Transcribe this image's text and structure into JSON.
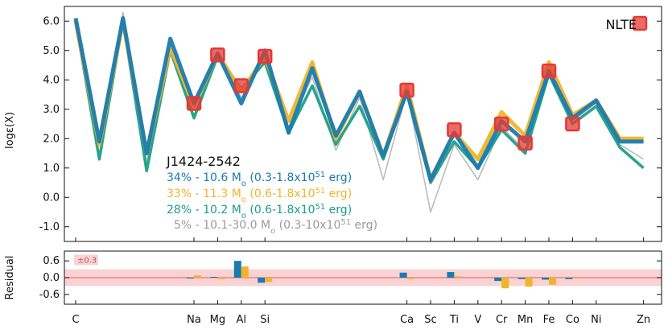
{
  "chart_data": [
    {
      "type": "line",
      "ylabel": "logε(X)",
      "ylim": [
        -1.5,
        6.5
      ],
      "yticks": [
        -1.0,
        0.0,
        1.0,
        2.0,
        3.0,
        4.0,
        5.0,
        6.0
      ],
      "grid": false,
      "x_slots": [
        "C",
        "N",
        "O",
        "F",
        "Ne",
        "Na",
        "Mg",
        "Al",
        "Si",
        "P",
        "S",
        "Cl",
        "Ar",
        "K",
        "Ca",
        "Sc",
        "Ti",
        "V",
        "Cr",
        "Mn",
        "Fe",
        "Co",
        "Ni",
        "Cu",
        "Zn"
      ],
      "x_tick_labels": [
        "C",
        "Na",
        "Mg",
        "Al",
        "Si",
        "Ca",
        "Sc",
        "Ti",
        "V",
        "Cr",
        "Mn",
        "Fe",
        "Co",
        "Ni",
        "Zn"
      ],
      "star_label": "J1424-2542",
      "series": [
        {
          "name": "34% - 10.6 Mo (0.3-1.8x1051 erg)",
          "label_main": "34% - 10.6 M",
          "label_sub": "o",
          "label_mid": " (0.3-1.8x10",
          "label_sup": "51",
          "label_end": " erg)",
          "color": "#1a7bb0",
          "values": [
            6.1,
            1.9,
            6.1,
            1.5,
            5.4,
            3.2,
            4.9,
            3.2,
            5.0,
            2.2,
            4.4,
            2.1,
            3.6,
            1.4,
            3.6,
            0.6,
            2.2,
            1.0,
            2.6,
            1.9,
            4.3,
            2.7,
            3.3,
            1.9,
            1.9
          ]
        },
        {
          "name": "33% - 11.3 Mo (0.6-1.8x1051 erg)",
          "label_main": "33% - 11.3 M",
          "label_sub": "o",
          "label_mid": " (0.6-1.8x10",
          "label_sup": "51",
          "label_end": " erg)",
          "color": "#f0b429",
          "values": [
            6.0,
            1.8,
            6.0,
            1.5,
            5.1,
            3.1,
            4.9,
            3.6,
            4.8,
            2.6,
            4.6,
            2.0,
            3.6,
            1.4,
            3.8,
            0.6,
            2.2,
            1.3,
            2.9,
            2.1,
            4.6,
            2.8,
            3.3,
            2.0,
            2.0
          ]
        },
        {
          "name": "28% - 10.2 Mo (0.6-1.8x1051 erg)",
          "label_main": "28% - 10.2 M",
          "label_sub": "o",
          "label_mid": " (0.6-1.8x10",
          "label_sup": "51",
          "label_end": " erg)",
          "color": "#1aa087",
          "values": [
            6.0,
            1.3,
            6.0,
            0.9,
            5.0,
            2.7,
            4.8,
            3.7,
            4.6,
            2.2,
            3.8,
            1.8,
            3.1,
            1.3,
            3.6,
            0.5,
            1.9,
            1.0,
            2.3,
            1.5,
            4.2,
            2.5,
            3.1,
            1.7,
            1.0
          ]
        },
        {
          "name": "5% - 10.1-30.0 Mo (0.3-10x1051 erg)",
          "label_main": "5% - 10.1-30.0 M",
          "label_sub": "o",
          "label_mid": " (0.3-10x10",
          "label_sup": "51",
          "label_end": " erg)",
          "color": "#9a9a9a",
          "values": [
            5.9,
            1.3,
            6.3,
            1.2,
            5.0,
            2.8,
            4.8,
            3.4,
            4.7,
            2.4,
            4.1,
            1.6,
            3.4,
            0.6,
            3.6,
            -0.5,
            1.8,
            0.6,
            2.4,
            1.6,
            4.2,
            2.6,
            3.2,
            1.8,
            1.3
          ]
        }
      ],
      "observed_nlte": {
        "label": "NLTE",
        "color": "#e53935",
        "points": [
          {
            "element": "Na",
            "y": 3.2
          },
          {
            "element": "Mg",
            "y": 4.85
          },
          {
            "element": "Al",
            "y": 3.8
          },
          {
            "element": "Si",
            "y": 4.8
          },
          {
            "element": "Ca",
            "y": 3.65
          },
          {
            "element": "Ti",
            "y": 2.3
          },
          {
            "element": "Cr",
            "y": 2.5
          },
          {
            "element": "Mn",
            "y": 1.85
          },
          {
            "element": "Fe",
            "y": 4.3
          },
          {
            "element": "Co",
            "y": 2.5
          }
        ]
      }
    },
    {
      "type": "bar",
      "ylabel": "Residual",
      "ylim": [
        -0.95,
        0.95
      ],
      "yticks": [
        -0.6,
        0.0,
        0.6
      ],
      "band": 0.3,
      "band_label": "±0.3",
      "categories": [
        "Na",
        "Mg",
        "Al",
        "Si",
        "Ca",
        "Ti",
        "Cr",
        "Mn",
        "Fe",
        "Co"
      ],
      "series": [
        {
          "name": "",
          "color": "#1a7bb0",
          "values": [
            -0.03,
            0.03,
            0.6,
            -0.18,
            0.18,
            0.2,
            -0.12,
            -0.05,
            -0.07,
            -0.05
          ]
        },
        {
          "name": "",
          "color": "#f0b429",
          "values": [
            0.08,
            -0.05,
            0.4,
            -0.15,
            -0.05,
            0.05,
            -0.38,
            -0.32,
            -0.25,
            0.0
          ]
        }
      ]
    }
  ]
}
